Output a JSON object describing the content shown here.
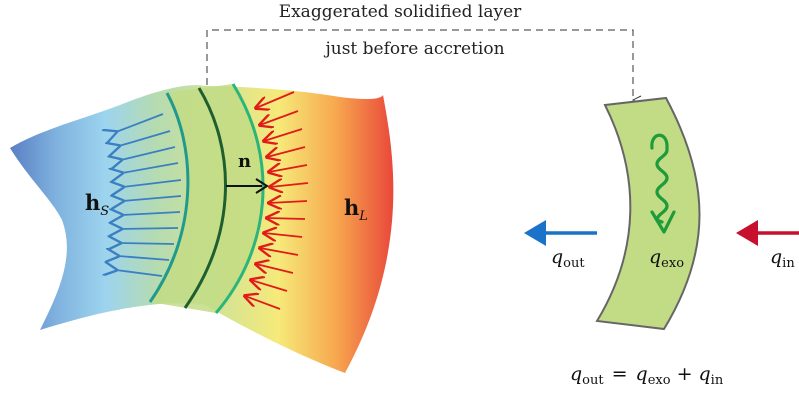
{
  "top_label": {
    "line1": "Exaggerated solidified layer",
    "line2": "just before accretion"
  },
  "left_region": {
    "solid_label_main": "h",
    "solid_label_sub": "S",
    "normal_label": "n",
    "liquid_label_main": "h",
    "liquid_label_sub": "L"
  },
  "right_element": {
    "qout_main": "q",
    "qout_sub": "out",
    "qexo_main": "q",
    "qexo_sub": "exo",
    "qin_main": "q",
    "qin_sub": "in"
  },
  "equation": {
    "lhs_main": "q",
    "lhs_sub": "out",
    "eq": "=",
    "t1_main": "q",
    "t1_sub": "exo",
    "plus": "+",
    "t2_main": "q",
    "t2_sub": "in"
  },
  "colors": {
    "solid_blue": "#3a7fc4",
    "liquid_red": "#e11a1a",
    "layer_green": "#c2dc85",
    "interface_teal": "#1f9a8c",
    "spiral_green": "#1e9c3a",
    "qout_arrow": "#1a73c8",
    "qin_arrow": "#c8102e"
  }
}
